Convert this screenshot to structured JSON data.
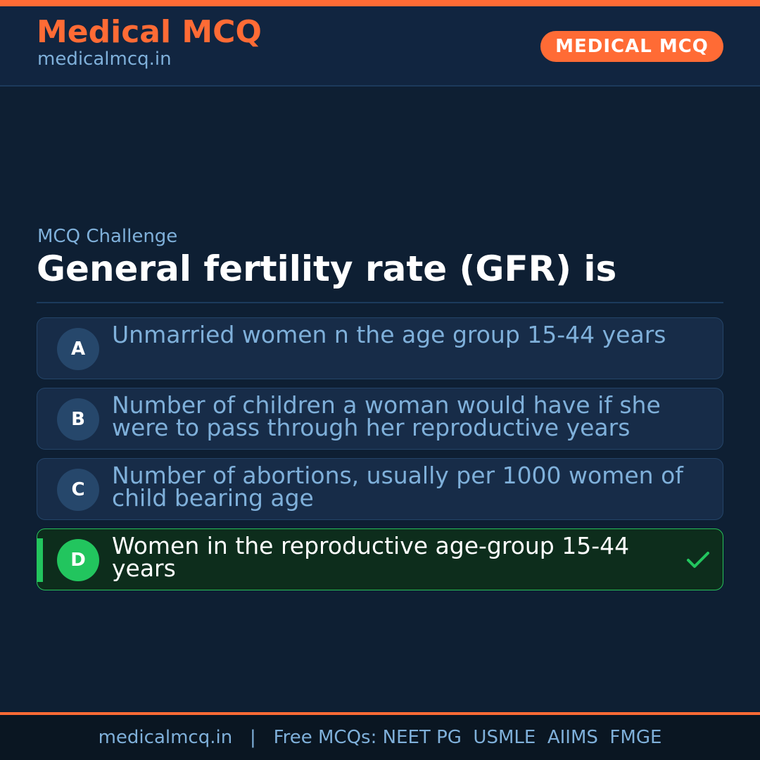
{
  "colors": {
    "accent": "#ff6b35",
    "background": "#0e1f33",
    "header_background": "#112540",
    "option_background": "#172c48",
    "correct_background": "#0d2d1c",
    "correct_green": "#22c55e",
    "muted_text": "#7fb0da"
  },
  "header": {
    "brand_title": "Medical MCQ",
    "brand_url": "medicalmcq.in",
    "badge": "MEDICAL MCQ"
  },
  "question": {
    "eyebrow": "MCQ Challenge",
    "text": "General fertility rate (GFR) is"
  },
  "options": [
    {
      "letter": "A",
      "text": "Unmarried women n the age group 15-44 years",
      "correct": false
    },
    {
      "letter": "B",
      "text": "Number of children a woman would have if she were to pass through her reproductive years",
      "correct": false
    },
    {
      "letter": "C",
      "text": "Number of abortions, usually per 1000 women of child bearing age",
      "correct": false
    },
    {
      "letter": "D",
      "text": "Women in the reproductive age-group 15-44 years",
      "correct": true,
      "icon": "check-icon"
    }
  ],
  "footer": {
    "site": "medicalmcq.in",
    "separator": "|",
    "tagline": "Free MCQs: NEET PG  USMLE  AIIMS  FMGE"
  }
}
